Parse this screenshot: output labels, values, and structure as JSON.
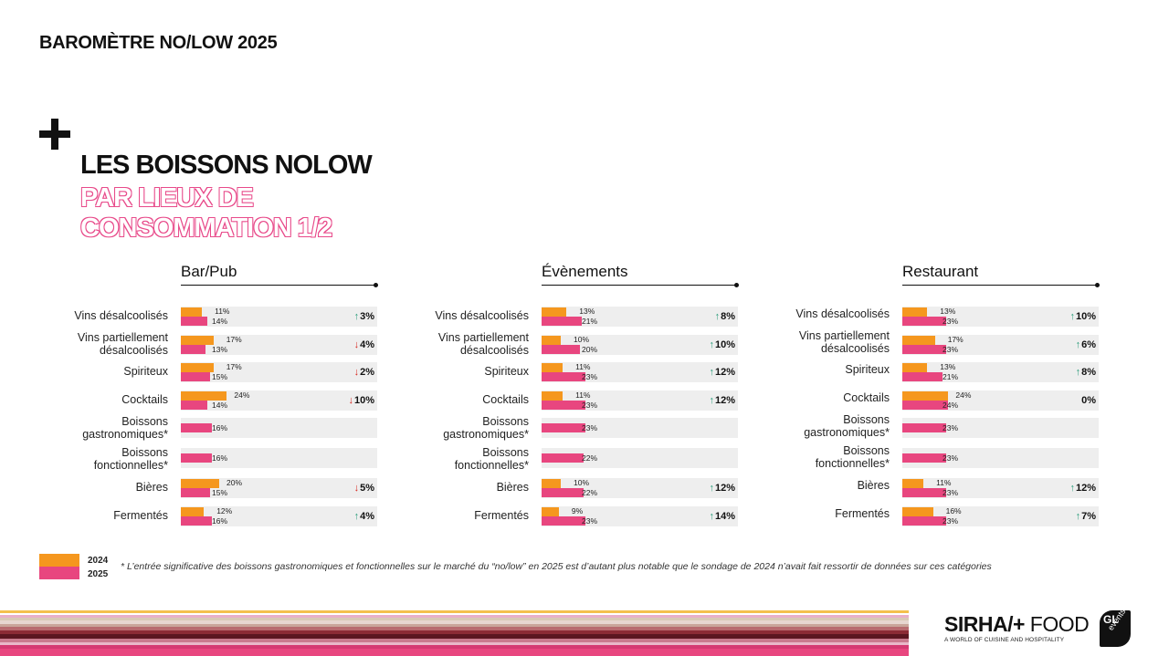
{
  "header": {
    "top_title": "BAROMÈTRE NO/LOW 2025",
    "heading_line1": "LES BOISSONS NOLOW",
    "heading_line2": "PAR LIEUX DE",
    "heading_line3": "CONSOMMATION 1/2"
  },
  "colors": {
    "y2024": "#f5971e",
    "y2025": "#e8467f",
    "up": "#2a9d7a",
    "down": "#d7261e"
  },
  "chart_data": [
    {
      "type": "bar",
      "title": "Bar/Pub",
      "unit": "%",
      "xlim": [
        0,
        100
      ],
      "categories": [
        "Vins désalcoolisés",
        "Vins partiellement désalcoolisés",
        "Spiriteux",
        "Cocktails",
        "Boissons gastronomiques*",
        "Boissons fonctionnelles*",
        "Bières",
        "Fermentés"
      ],
      "series": [
        {
          "name": "2024",
          "values": [
            11,
            17,
            17,
            24,
            null,
            null,
            20,
            12
          ]
        },
        {
          "name": "2025",
          "values": [
            14,
            13,
            15,
            14,
            16,
            16,
            15,
            16
          ]
        }
      ],
      "deltas": [
        {
          "dir": "up",
          "text": "3%"
        },
        {
          "dir": "down",
          "text": "4%"
        },
        {
          "dir": "down",
          "text": "2%"
        },
        {
          "dir": "down",
          "text": "10%"
        },
        null,
        null,
        {
          "dir": "down",
          "text": "5%"
        },
        {
          "dir": "up",
          "text": "4%"
        }
      ]
    },
    {
      "type": "bar",
      "title": "Évènements",
      "unit": "%",
      "xlim": [
        0,
        100
      ],
      "categories": [
        "Vins désalcoolisés",
        "Vins partiellement désalcoolisés",
        "Spiriteux",
        "Cocktails",
        "Boissons gastronomiques*",
        "Boissons fonctionnelles*",
        "Bières",
        "Fermentés"
      ],
      "series": [
        {
          "name": "2024",
          "values": [
            13,
            10,
            11,
            11,
            null,
            null,
            10,
            9
          ]
        },
        {
          "name": "2025",
          "values": [
            21,
            20,
            23,
            23,
            23,
            22,
            22,
            23
          ]
        }
      ],
      "deltas": [
        {
          "dir": "up",
          "text": "8%"
        },
        {
          "dir": "up",
          "text": "10%"
        },
        {
          "dir": "up",
          "text": "12%"
        },
        {
          "dir": "up",
          "text": "12%"
        },
        null,
        null,
        {
          "dir": "up",
          "text": "12%"
        },
        {
          "dir": "up",
          "text": "14%"
        }
      ]
    },
    {
      "type": "bar",
      "title": "Restaurant",
      "unit": "%",
      "xlim": [
        0,
        100
      ],
      "categories": [
        "Vins désalcoolisés",
        "Vins partiellement désalcoolisés",
        "Spiriteux",
        "Cocktails",
        "Boissons gastronomiques*",
        "Boissons fonctionnelles*",
        "Bières",
        "Fermentés"
      ],
      "series": [
        {
          "name": "2024",
          "values": [
            13,
            17,
            13,
            24,
            null,
            null,
            11,
            16
          ]
        },
        {
          "name": "2025",
          "values": [
            23,
            23,
            21,
            24,
            23,
            23,
            23,
            23
          ]
        }
      ],
      "deltas": [
        {
          "dir": "up",
          "text": "10%"
        },
        {
          "dir": "up",
          "text": "6%"
        },
        {
          "dir": "up",
          "text": "8%"
        },
        {
          "dir": "none",
          "text": "0%"
        },
        null,
        null,
        {
          "dir": "up",
          "text": "12%"
        },
        {
          "dir": "up",
          "text": "7%"
        }
      ]
    }
  ],
  "legend": {
    "label_2024": "2024",
    "label_2025": "2025"
  },
  "footnote": "* L’entrée significative des boissons gastronomiques et fonctionnelles sur le marché du “no/low” en 2025 est d’autant plus notable que le sondage de 2024 n’avait fait ressortir de données sur ces catégories",
  "logo": {
    "brand_bold": "SIRHA",
    "brand_sep": "/+",
    "brand_light": " FOOD",
    "tagline": "A WORLD OF CUISINE AND HOSPITALITY",
    "gl_mark": "GL",
    "gl_events": "events"
  },
  "icons": {
    "plus": "plus-icon",
    "up": "arrow-up-icon",
    "down": "arrow-down-icon"
  }
}
